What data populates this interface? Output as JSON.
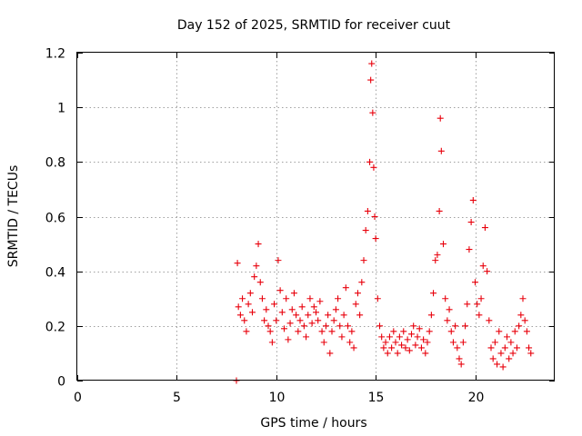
{
  "chart_data": {
    "type": "scatter",
    "title": "Day 152 of 2025, SRMTID for receiver cuut",
    "xlabel": "GPS time / hours",
    "ylabel": "SRMTID / TECUs",
    "xlim": [
      0,
      24
    ],
    "ylim": [
      0,
      1.2
    ],
    "grid": true,
    "marker": "plus",
    "color": "#e8000b",
    "x_ticks": [
      0,
      5,
      10,
      15,
      20
    ],
    "x_tick_labels": [
      "0",
      "5",
      "10",
      "15",
      "20"
    ],
    "y_ticks": [
      0,
      0.2,
      0.4,
      0.6,
      0.8,
      1.0,
      1.2
    ],
    "y_tick_labels": [
      "0",
      "0.2",
      "0.4",
      "0.6",
      "0.8",
      "1",
      "1.2"
    ],
    "series": [
      {
        "name": "SRMTID",
        "x": [
          8.0,
          8.05,
          8.1,
          8.2,
          8.3,
          8.4,
          8.5,
          8.6,
          8.7,
          8.8,
          8.9,
          9.0,
          9.1,
          9.2,
          9.3,
          9.4,
          9.5,
          9.6,
          9.7,
          9.8,
          9.9,
          10.0,
          10.1,
          10.2,
          10.3,
          10.4,
          10.5,
          10.6,
          10.7,
          10.8,
          10.9,
          11.0,
          11.1,
          11.2,
          11.3,
          11.4,
          11.5,
          11.6,
          11.7,
          11.8,
          11.9,
          12.0,
          12.1,
          12.2,
          12.3,
          12.4,
          12.5,
          12.6,
          12.7,
          12.8,
          12.9,
          13.0,
          13.1,
          13.2,
          13.3,
          13.4,
          13.5,
          13.6,
          13.7,
          13.8,
          13.9,
          14.0,
          14.1,
          14.2,
          14.3,
          14.4,
          14.5,
          14.6,
          14.7,
          14.75,
          14.8,
          14.85,
          14.9,
          14.95,
          15.0,
          15.1,
          15.2,
          15.3,
          15.4,
          15.5,
          15.6,
          15.7,
          15.8,
          15.9,
          16.0,
          16.1,
          16.2,
          16.3,
          16.4,
          16.5,
          16.6,
          16.7,
          16.8,
          16.9,
          17.0,
          17.1,
          17.2,
          17.3,
          17.4,
          17.5,
          17.6,
          17.7,
          17.8,
          17.9,
          18.0,
          18.1,
          18.2,
          18.25,
          18.3,
          18.4,
          18.5,
          18.6,
          18.7,
          18.8,
          18.9,
          19.0,
          19.1,
          19.2,
          19.3,
          19.4,
          19.5,
          19.6,
          19.7,
          19.8,
          19.9,
          20.0,
          20.1,
          20.2,
          20.3,
          20.4,
          20.5,
          20.6,
          20.7,
          20.8,
          20.9,
          21.0,
          21.1,
          21.2,
          21.3,
          21.4,
          21.5,
          21.6,
          21.7,
          21.8,
          21.9,
          22.0,
          22.1,
          22.2,
          22.3,
          22.4,
          22.5,
          22.6,
          22.7,
          22.8
        ],
        "y": [
          0.0,
          0.43,
          0.27,
          0.24,
          0.3,
          0.22,
          0.18,
          0.28,
          0.32,
          0.25,
          0.38,
          0.42,
          0.5,
          0.36,
          0.3,
          0.22,
          0.26,
          0.2,
          0.18,
          0.14,
          0.28,
          0.22,
          0.44,
          0.33,
          0.25,
          0.19,
          0.3,
          0.15,
          0.21,
          0.26,
          0.32,
          0.24,
          0.18,
          0.22,
          0.27,
          0.2,
          0.16,
          0.24,
          0.3,
          0.21,
          0.27,
          0.25,
          0.22,
          0.29,
          0.18,
          0.14,
          0.2,
          0.24,
          0.1,
          0.18,
          0.22,
          0.26,
          0.3,
          0.2,
          0.16,
          0.24,
          0.34,
          0.2,
          0.14,
          0.18,
          0.12,
          0.28,
          0.32,
          0.24,
          0.36,
          0.44,
          0.55,
          0.62,
          0.8,
          1.1,
          1.16,
          0.98,
          0.78,
          0.6,
          0.52,
          0.3,
          0.2,
          0.16,
          0.12,
          0.14,
          0.1,
          0.16,
          0.12,
          0.18,
          0.14,
          0.1,
          0.16,
          0.13,
          0.18,
          0.12,
          0.15,
          0.11,
          0.17,
          0.2,
          0.13,
          0.16,
          0.19,
          0.12,
          0.15,
          0.1,
          0.14,
          0.18,
          0.24,
          0.32,
          0.44,
          0.46,
          0.62,
          0.96,
          0.84,
          0.5,
          0.3,
          0.22,
          0.26,
          0.18,
          0.14,
          0.2,
          0.12,
          0.08,
          0.06,
          0.14,
          0.2,
          0.28,
          0.48,
          0.58,
          0.66,
          0.36,
          0.28,
          0.24,
          0.3,
          0.42,
          0.56,
          0.4,
          0.22,
          0.12,
          0.08,
          0.14,
          0.06,
          0.18,
          0.1,
          0.05,
          0.12,
          0.16,
          0.08,
          0.14,
          0.1,
          0.18,
          0.12,
          0.2,
          0.24,
          0.3,
          0.22,
          0.18,
          0.12,
          0.1
        ]
      }
    ]
  }
}
